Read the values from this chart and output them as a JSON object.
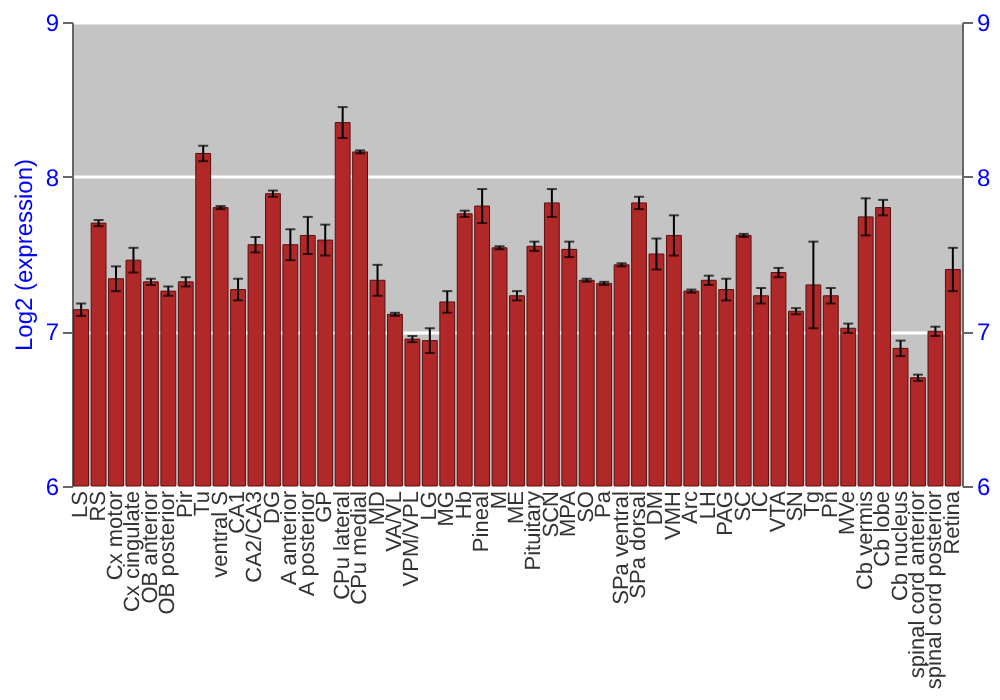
{
  "chart_data": {
    "type": "bar",
    "ylabel": "Log2 (expression)",
    "categories": [
      "LS",
      "RS",
      "Cx motor",
      "Cx cingulate",
      "OB anterior",
      "OB posterior",
      "Pir",
      "Tu",
      "ventral S",
      "CA1",
      "CA2/CA3",
      "DG",
      "A anterior",
      "A posterior",
      "GP",
      "CPu lateral",
      "CPu medial",
      "MD",
      "VA/VL",
      "VPM/VPL",
      "LG",
      "MG",
      "Hb",
      "Pineal",
      "M",
      "ME",
      "Pituitary",
      "SCN",
      "MPA",
      "SO",
      "Pa",
      "SPa ventral",
      "SPa dorsal",
      "DM",
      "VMH",
      "Arc",
      "LH",
      "PAG",
      "SC",
      "IC",
      "VTA",
      "SN",
      "Tg",
      "Pn",
      "MVe",
      "Cb vermis",
      "Cb lobe",
      "Cb nucleus",
      "spinal cord anterior",
      "spinal cord posterior",
      "Retina"
    ],
    "values": [
      7.14,
      7.7,
      7.34,
      7.46,
      7.32,
      7.26,
      7.32,
      8.15,
      7.8,
      7.27,
      7.56,
      7.89,
      7.56,
      7.62,
      7.59,
      8.35,
      8.16,
      7.33,
      7.11,
      6.95,
      6.94,
      7.19,
      7.76,
      7.81,
      7.54,
      7.23,
      7.55,
      7.83,
      7.53,
      7.33,
      7.31,
      7.43,
      7.83,
      7.5,
      7.62,
      7.26,
      7.33,
      7.27,
      7.62,
      7.23,
      7.38,
      7.13,
      7.3,
      7.23,
      7.02,
      7.74,
      7.8,
      6.89,
      6.7,
      7.0,
      7.4
    ],
    "errors": [
      0.04,
      0.02,
      0.08,
      0.08,
      0.02,
      0.03,
      0.03,
      0.05,
      0.01,
      0.07,
      0.05,
      0.02,
      0.1,
      0.12,
      0.1,
      0.1,
      0.01,
      0.1,
      0.01,
      0.02,
      0.08,
      0.07,
      0.02,
      0.11,
      0.01,
      0.03,
      0.03,
      0.09,
      0.05,
      0.01,
      0.01,
      0.01,
      0.04,
      0.1,
      0.13,
      0.01,
      0.03,
      0.07,
      0.01,
      0.05,
      0.03,
      0.02,
      0.28,
      0.05,
      0.03,
      0.12,
      0.05,
      0.05,
      0.02,
      0.03,
      0.14
    ],
    "color": "#b02828",
    "ylim": [
      6,
      9
    ],
    "yticks": [
      6,
      7,
      8,
      9
    ],
    "y2lim": [
      6,
      9
    ],
    "y2ticks": [
      6,
      7,
      8,
      9
    ],
    "grid": "y"
  }
}
